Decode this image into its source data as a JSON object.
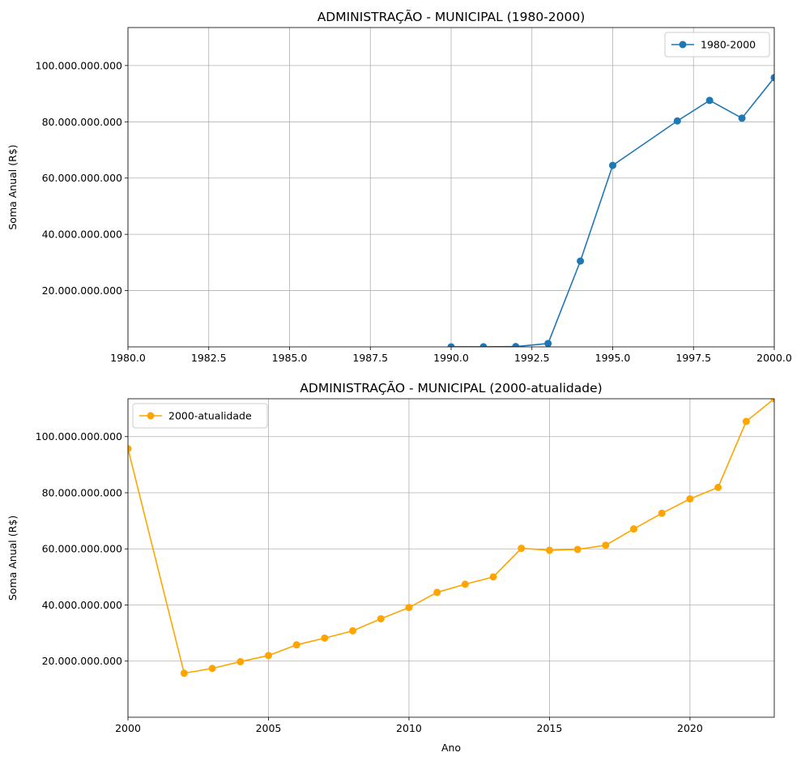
{
  "chart_data": [
    {
      "type": "line",
      "title": "ADMINISTRAÇÃO - MUNICIPAL (1980-2000)",
      "xlabel": "",
      "ylabel": "Soma Anual (R$)",
      "xlim": [
        1980,
        2000
      ],
      "ylim": [
        0,
        113500000000
      ],
      "x_ticks": [
        1980.0,
        1982.5,
        1985.0,
        1987.5,
        1990.0,
        1992.5,
        1995.0,
        1997.5,
        2000.0
      ],
      "x_tick_labels": [
        "1980.0",
        "1982.5",
        "1985.0",
        "1987.5",
        "1990.0",
        "1992.5",
        "1995.0",
        "1997.5",
        "2000.0"
      ],
      "y_ticks": [
        20000000000,
        40000000000,
        60000000000,
        80000000000,
        100000000000
      ],
      "y_tick_labels": [
        "20.000.000.000",
        "40.000.000.000",
        "60.000.000.000",
        "80.000.000.000",
        "100.000.000.000"
      ],
      "grid": true,
      "legend": "upper-right",
      "series": [
        {
          "name": "1980-2000",
          "color": "#1f77b4",
          "x": [
            1990,
            1991,
            1992,
            1993,
            1994,
            1995,
            1997,
            1998,
            1999,
            2000
          ],
          "y": [
            10000000,
            20000000,
            100000000,
            1200000000,
            30500000000,
            64500000000,
            80300000000,
            87600000000,
            81300000000,
            95700000000
          ]
        }
      ]
    },
    {
      "type": "line",
      "title": "ADMINISTRAÇÃO - MUNICIPAL (2000-atualidade)",
      "xlabel": "Ano",
      "ylabel": "Soma Anual (R$)",
      "xlim": [
        2000,
        2023
      ],
      "ylim": [
        0,
        113500000000
      ],
      "x_ticks": [
        2000,
        2005,
        2010,
        2015,
        2020
      ],
      "x_tick_labels": [
        "2000",
        "2005",
        "2010",
        "2015",
        "2020"
      ],
      "y_ticks": [
        20000000000,
        40000000000,
        60000000000,
        80000000000,
        100000000000
      ],
      "y_tick_labels": [
        "20.000.000.000",
        "40.000.000.000",
        "60.000.000.000",
        "80.000.000.000",
        "100.000.000.000"
      ],
      "grid": true,
      "legend": "upper-left",
      "series": [
        {
          "name": "2000-atualidade",
          "color": "#ffa500",
          "x": [
            2000,
            2002,
            2003,
            2004,
            2005,
            2006,
            2007,
            2008,
            2009,
            2010,
            2011,
            2012,
            2013,
            2014,
            2015,
            2016,
            2017,
            2018,
            2019,
            2020,
            2021,
            2022,
            2023
          ],
          "y": [
            95700000000,
            15700000000,
            17400000000,
            19800000000,
            22000000000,
            25800000000,
            28200000000,
            30800000000,
            35100000000,
            39100000000,
            44500000000,
            47400000000,
            50000000000,
            60200000000,
            59500000000,
            59800000000,
            61300000000,
            67100000000,
            72700000000,
            77800000000,
            81900000000,
            105400000000,
            113500000000
          ]
        }
      ]
    }
  ]
}
